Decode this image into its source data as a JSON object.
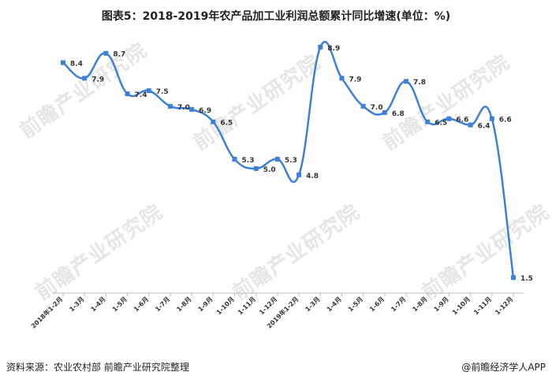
{
  "title": "图表5：2018-2019年农产品加工业利润总额累计同比增速(单位：%)",
  "source": "资料来源：农业农村部 前瞻产业研究院整理",
  "brand": "@前瞻经济学人APP",
  "watermark": "前瞻产业研究院",
  "colors": {
    "line": "#3f7fd8",
    "text": "#222222"
  },
  "chart_data": {
    "type": "line",
    "categories": [
      "2018年1-2月",
      "1-3月",
      "1-4月",
      "1-5月",
      "1-6月",
      "1-7月",
      "1-8月",
      "1-9月",
      "1-10月",
      "1-11月",
      "1-12月",
      "2019年1-2月",
      "1-3月",
      "1-4月",
      "1-5月",
      "1-6月",
      "1-7月",
      "1-8月",
      "1-9月",
      "1-10月",
      "1-11月",
      "1-12月"
    ],
    "series": [
      {
        "values": [
          8.4,
          7.9,
          8.7,
          7.4,
          7.5,
          7.0,
          6.9,
          6.5,
          5.3,
          5.0,
          5.3,
          4.8,
          8.9,
          7.9,
          7.0,
          6.8,
          7.8,
          6.5,
          6.6,
          6.4,
          6.6,
          1.5
        ]
      }
    ],
    "data_labels": true,
    "grid": false,
    "y_axis_visible": false,
    "ylim": [
      1.0,
      9.4
    ]
  }
}
